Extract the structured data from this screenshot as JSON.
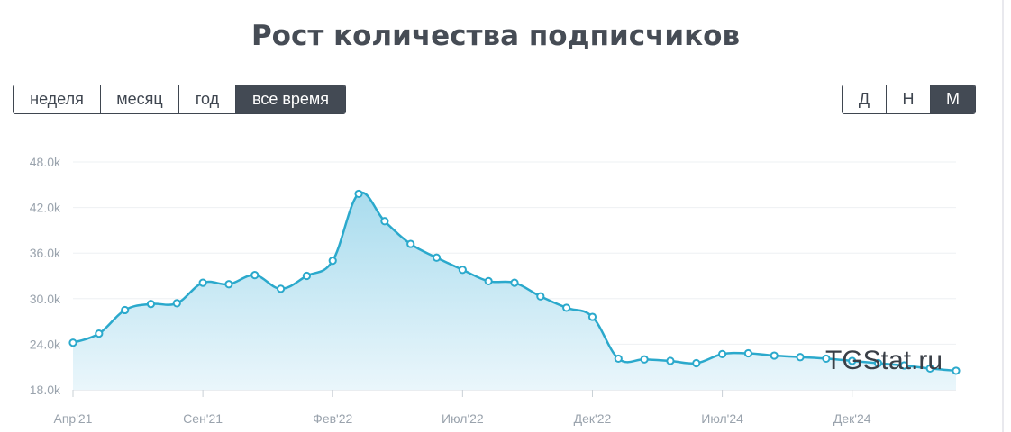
{
  "title": "Рост количества подписчиков",
  "period_buttons": [
    {
      "label": "неделя",
      "active": false
    },
    {
      "label": "месяц",
      "active": false
    },
    {
      "label": "год",
      "active": false
    },
    {
      "label": "все время",
      "active": true
    }
  ],
  "scale_buttons": [
    {
      "label": "Д",
      "active": false
    },
    {
      "label": "Н",
      "active": false
    },
    {
      "label": "М",
      "active": true
    }
  ],
  "watermark": "TGStat.ru",
  "colors": {
    "line": "#2ba9cc",
    "fill_top": "#a9dcee",
    "fill_bottom": "#eaf6fb",
    "grid": "#eef0f3",
    "active_button": "#434a54"
  },
  "chart_data": {
    "type": "area",
    "title": "Рост количества подписчиков",
    "xlabel": "",
    "ylabel": "",
    "ylim": [
      18000,
      48000
    ],
    "y_ticks": [
      {
        "value": 48000,
        "label": "48.0k"
      },
      {
        "value": 42000,
        "label": "42.0k"
      },
      {
        "value": 36000,
        "label": "36.0k"
      },
      {
        "value": 30000,
        "label": "30.0k"
      },
      {
        "value": 24000,
        "label": "24.0k"
      },
      {
        "value": 18000,
        "label": "18.0k"
      }
    ],
    "x_ticks": [
      {
        "index": 0,
        "label": "Апр'21"
      },
      {
        "index": 5,
        "label": "Сен'21"
      },
      {
        "index": 10,
        "label": "Фев'22"
      },
      {
        "index": 15,
        "label": "Июл'22"
      },
      {
        "index": 20,
        "label": "Дек'22"
      },
      {
        "index": 25,
        "label": "Июл'24"
      },
      {
        "index": 30,
        "label": "Дек'24"
      }
    ],
    "grid": true,
    "series": [
      {
        "values": [
          24200,
          25400,
          28500,
          29300,
          29400,
          32100,
          31900,
          33100,
          31300,
          33000,
          35000,
          43800,
          40200,
          37200,
          35400,
          33800,
          32300,
          32100,
          30300,
          28800,
          27600,
          22100,
          22000,
          21800,
          21500,
          22700,
          22800,
          22500,
          22300,
          22100,
          21800,
          21500,
          21200,
          20800,
          20500
        ]
      }
    ]
  }
}
